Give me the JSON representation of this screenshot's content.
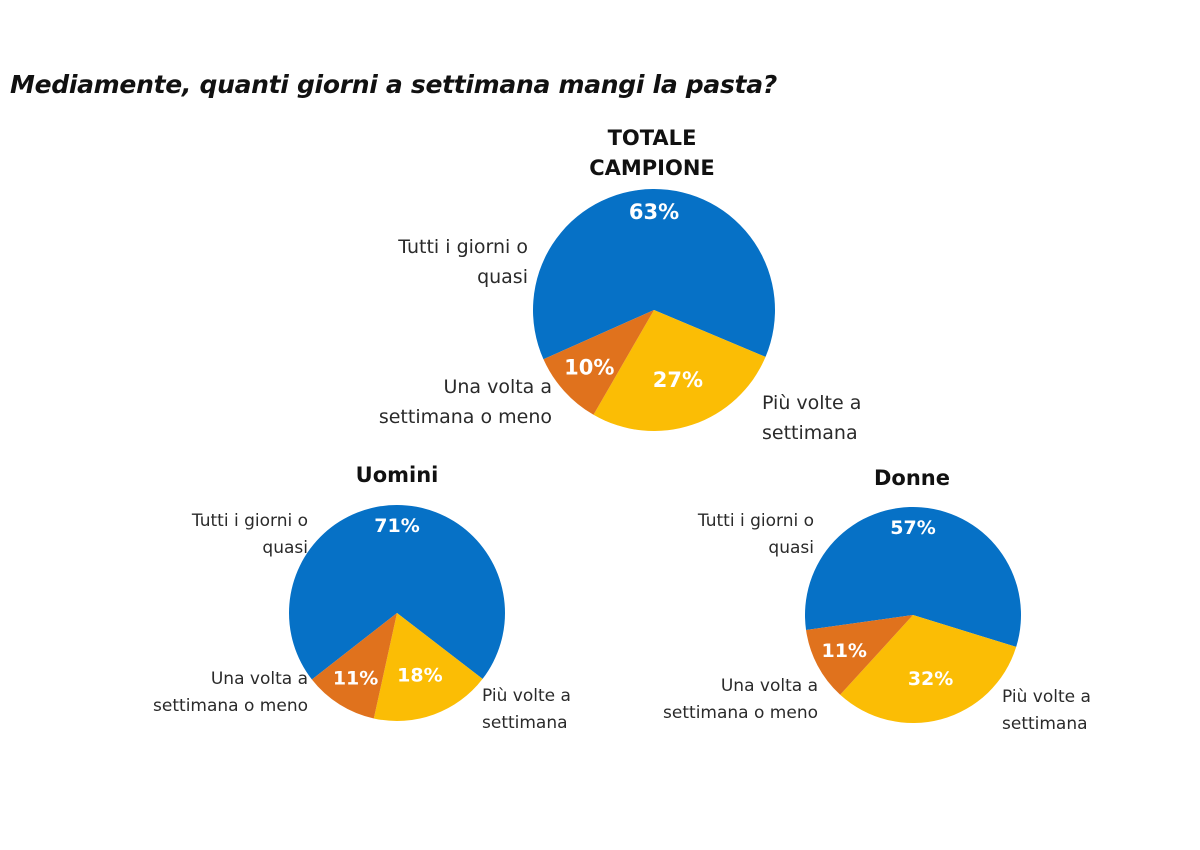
{
  "title": "Mediamente, quanti giorni a settimana mangi la pasta?",
  "colors": {
    "tutti": "#0671c6",
    "piu": "#fbbd05",
    "una": "#e0721d"
  },
  "chart_data": [
    {
      "type": "pie",
      "title_lines": [
        "TOTALE",
        "CAMPIONE"
      ],
      "slices": [
        {
          "key": "tutti",
          "label_lines": [
            "Tutti i giorni o",
            "quasi"
          ],
          "value": 63,
          "display": "63%"
        },
        {
          "key": "piu",
          "label_lines": [
            "Più volte a",
            "settimana"
          ],
          "value": 27,
          "display": "27%"
        },
        {
          "key": "una",
          "label_lines": [
            "Una volta a",
            "settimana o meno"
          ],
          "value": 10,
          "display": "10%"
        }
      ]
    },
    {
      "type": "pie",
      "title_lines": [
        "Uomini"
      ],
      "slices": [
        {
          "key": "tutti",
          "label_lines": [
            "Tutti i giorni o",
            "quasi"
          ],
          "value": 71,
          "display": "71%"
        },
        {
          "key": "piu",
          "label_lines": [
            "Più volte a",
            "settimana"
          ],
          "value": 18,
          "display": "18%"
        },
        {
          "key": "una",
          "label_lines": [
            "Una volta a",
            "settimana o meno"
          ],
          "value": 11,
          "display": "11%"
        }
      ]
    },
    {
      "type": "pie",
      "title_lines": [
        "Donne"
      ],
      "slices": [
        {
          "key": "tutti",
          "label_lines": [
            "Tutti i giorni o",
            "quasi"
          ],
          "value": 57,
          "display": "57%"
        },
        {
          "key": "piu",
          "label_lines": [
            "Più volte a",
            "settimana"
          ],
          "value": 32,
          "display": "32%"
        },
        {
          "key": "una",
          "label_lines": [
            "Una volta a",
            "settimana o meno"
          ],
          "value": 11,
          "display": "11%"
        }
      ]
    }
  ]
}
